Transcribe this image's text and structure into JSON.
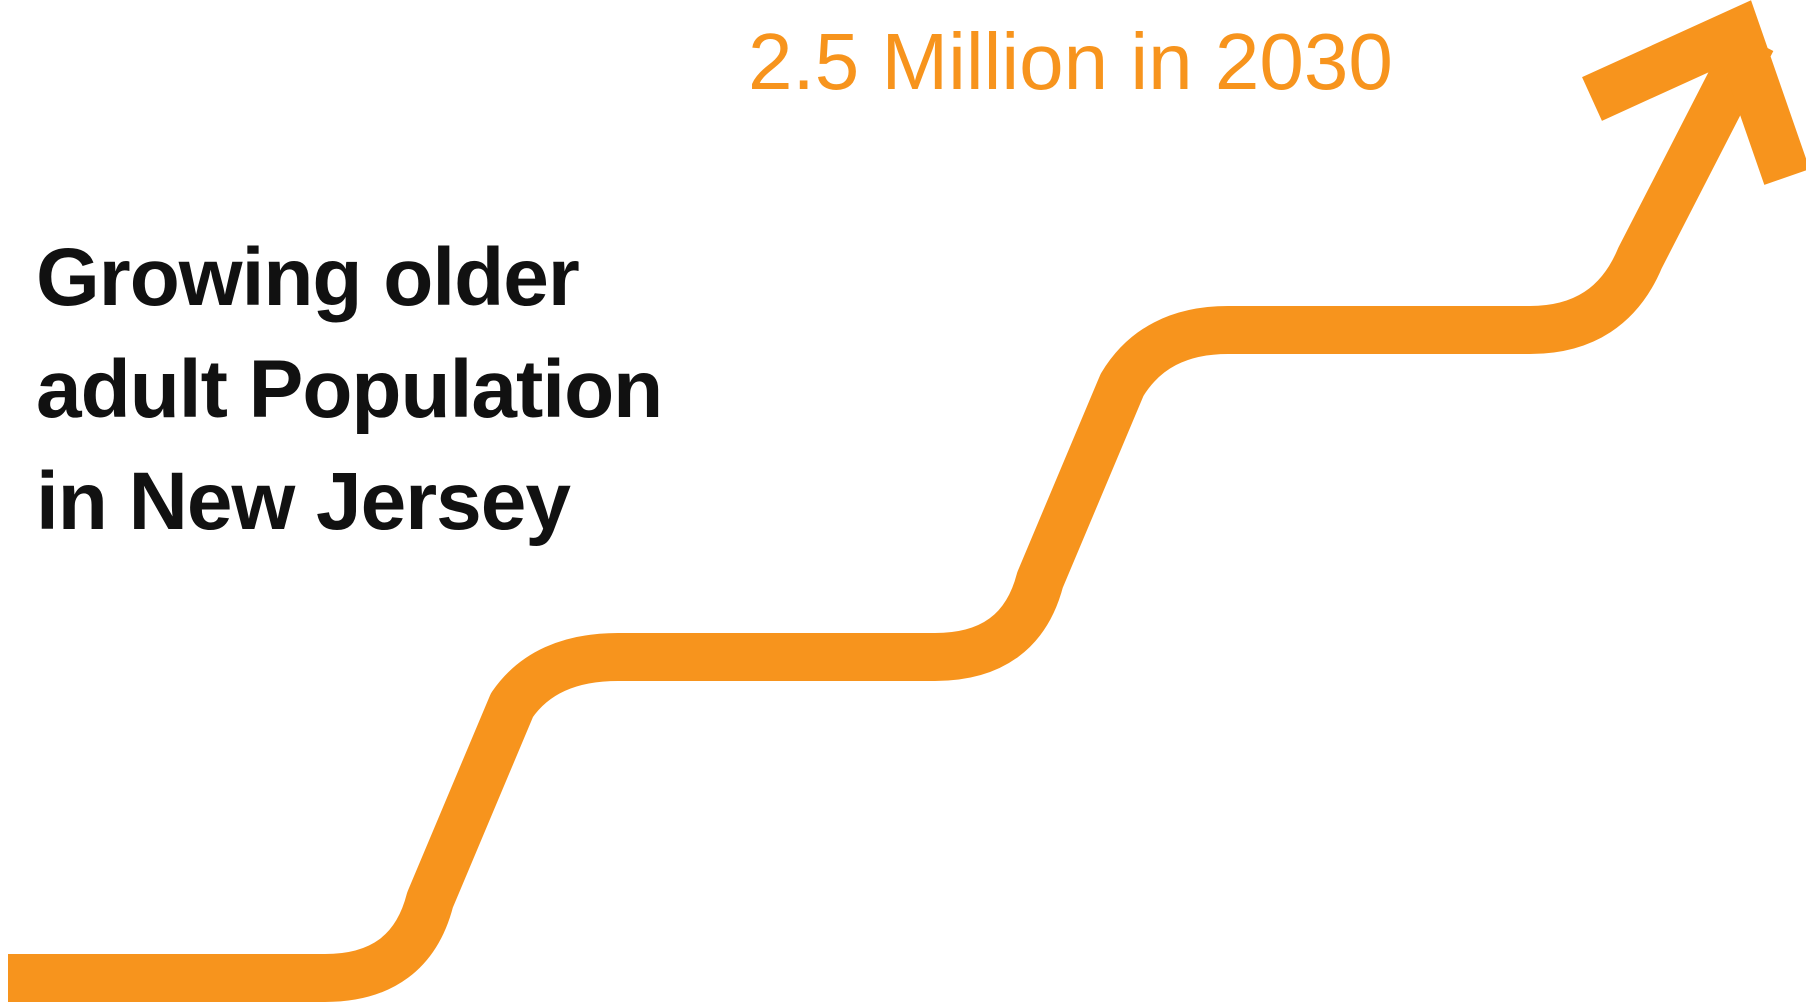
{
  "colors": {
    "accent": "#F7941D",
    "text": "#111111",
    "background": "#ffffff"
  },
  "callout": {
    "text": "2.5 Million in 2030"
  },
  "headline": {
    "lines": [
      "Growing older",
      "adult Population",
      "in New Jersey"
    ]
  },
  "graphic": {
    "icon": "staircase-arrow-icon"
  }
}
